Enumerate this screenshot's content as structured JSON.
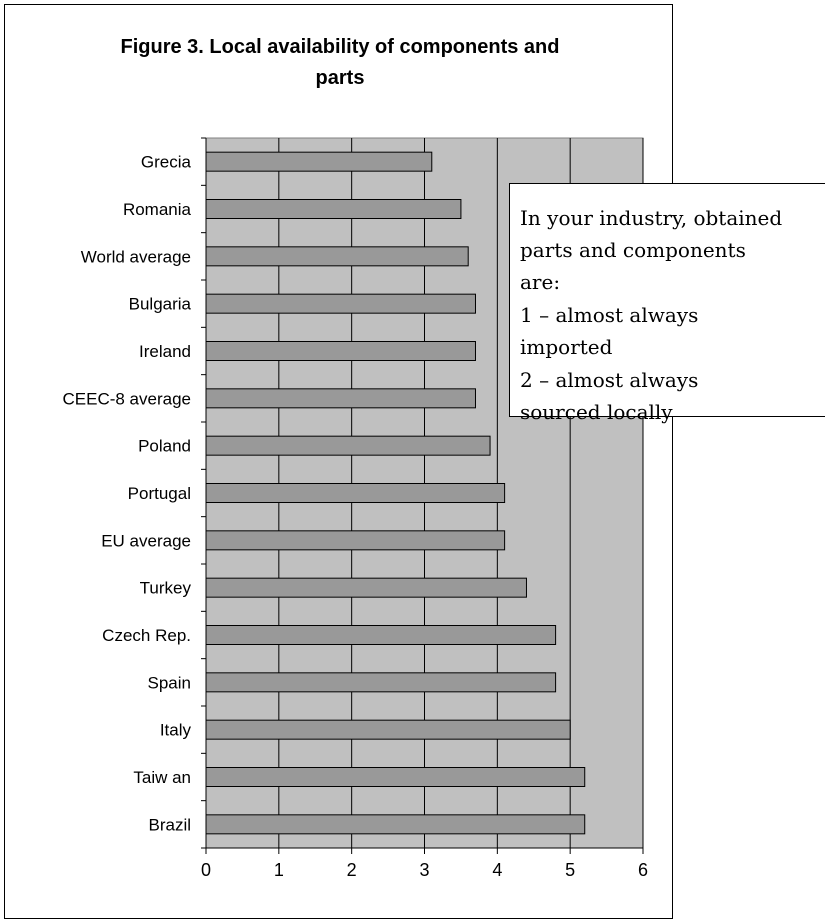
{
  "chart_data": {
    "type": "bar",
    "orientation": "horizontal",
    "title": "Figure 3. Local availability of components and parts",
    "title_lines": [
      "Figure 3. Local availability of components and",
      "parts"
    ],
    "categories": [
      "Grecia",
      "Romania",
      "World average",
      "Bulgaria",
      "Ireland",
      "CEEC-8 average",
      "Poland",
      "Portugal",
      "EU average",
      "Turkey",
      "Czech Rep.",
      "Spain",
      "Italy",
      "Taiw an",
      "Brazil"
    ],
    "values": [
      3.1,
      3.5,
      3.6,
      3.7,
      3.7,
      3.7,
      3.9,
      4.1,
      4.1,
      4.4,
      4.8,
      4.8,
      5.0,
      5.2,
      5.2
    ],
    "xlim": [
      0,
      6
    ],
    "x_ticks": [
      "0",
      "1",
      "2",
      "3",
      "4",
      "5",
      "6"
    ],
    "xlabel": "",
    "ylabel": "",
    "grid": "vertical",
    "colors": {
      "bar_fill": "#999999",
      "plot_background": "#c0c0c0",
      "gridline": "#000000",
      "bar_stroke": "#000000"
    }
  },
  "annotation": {
    "lines": [
      "In your industry, obtained",
      "parts and components",
      "are:",
      "1 – almost always",
      "imported",
      "2 – almost always",
      "sourced locally"
    ]
  }
}
